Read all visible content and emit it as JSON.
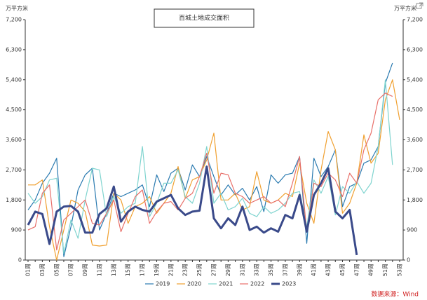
{
  "chart_data": {
    "type": "line",
    "title": "百城土地成交面积",
    "y_label": "万平方米",
    "source": "数据来源：Wind",
    "categories": [
      "01周",
      null,
      "03周",
      null,
      "05周",
      null,
      "07周",
      null,
      "09周",
      null,
      "11周",
      null,
      "13周",
      null,
      "15周",
      null,
      "17周",
      null,
      "19周",
      null,
      "21周",
      null,
      "23周",
      null,
      "25周",
      null,
      "27周",
      null,
      "29周",
      null,
      "31周",
      null,
      "33周",
      null,
      "35周",
      null,
      "37周",
      null,
      "39周",
      null,
      "41周",
      null,
      "43周",
      null,
      "45周",
      null,
      "47周",
      null,
      "49周",
      null,
      "51周",
      null,
      "53周"
    ],
    "ylim": [
      0,
      7200
    ],
    "yticks": [
      0,
      900,
      {
        "value": 1800,
        "label": "1,800"
      },
      {
        "value": 2700,
        "label": "2,700"
      },
      {
        "value": 3600,
        "label": "3,600"
      },
      {
        "value": 4500,
        "label": "4,500"
      },
      {
        "value": 5400,
        "label": "5,400"
      },
      {
        "value": 6300,
        "label": "6,300"
      },
      {
        "value": 7200,
        "label": "7,200"
      }
    ],
    "series": [
      {
        "name": "2019",
        "color": "#2a7ab0",
        "width": 1.2,
        "values": [
          1500,
          1800,
          2300,
          2600,
          3050,
          100,
          1000,
          2100,
          2550,
          2750,
          900,
          1400,
          2000,
          1900,
          2000,
          2100,
          2250,
          1600,
          2550,
          2050,
          2600,
          2750,
          2100,
          2850,
          2500,
          3100,
          2500,
          1950,
          2250,
          1950,
          2150,
          1800,
          2200,
          1450,
          2550,
          2300,
          2550,
          2600,
          3100,
          500,
          3050,
          2500,
          2800,
          3300,
          1600,
          2200,
          2300,
          2900,
          3000,
          3400,
          5300,
          5900,
          null
        ]
      },
      {
        "name": "2020",
        "color": "#f0a030",
        "width": 1.2,
        "values": [
          2250,
          2250,
          2400,
          1000,
          0,
          900,
          1800,
          1700,
          1450,
          450,
          420,
          450,
          2000,
          1800,
          1100,
          1600,
          1700,
          1900,
          1400,
          1700,
          2000,
          2800,
          1850,
          2400,
          2500,
          3000,
          3800,
          1800,
          1800,
          2000,
          1500,
          1600,
          2650,
          1800,
          1700,
          1800,
          2000,
          1900,
          2900,
          1700,
          1100,
          2700,
          3850,
          3300,
          1400,
          1700,
          2300,
          3750,
          2900,
          3200,
          4800,
          5400,
          4200
        ]
      },
      {
        "name": "2021",
        "color": "#7fd4cf",
        "width": 1.2,
        "values": [
          2000,
          1700,
          1900,
          2400,
          2450,
          200,
          1200,
          650,
          1800,
          2750,
          2700,
          1300,
          1900,
          1400,
          1600,
          1700,
          3400,
          1300,
          1700,
          2300,
          2300,
          2700,
          1900,
          1700,
          2300,
          3400,
          1700,
          2000,
          1500,
          1600,
          1850,
          1400,
          1300,
          1600,
          1400,
          1500,
          1700,
          2000,
          2050,
          1000,
          2400,
          2000,
          2500,
          1350,
          2200,
          2000,
          2350,
          2000,
          2300,
          3400,
          5400,
          2850,
          null
        ]
      },
      {
        "name": "2022",
        "color": "#e8706a",
        "width": 1.2,
        "values": [
          900,
          1000,
          2000,
          2250,
          300,
          1200,
          1400,
          1600,
          1800,
          1100,
          1050,
          1400,
          1800,
          850,
          1400,
          1900,
          2100,
          1100,
          1450,
          1700,
          1750,
          1500,
          1850,
          2000,
          2500,
          3200,
          2000,
          2600,
          2550,
          2000,
          1900,
          1700,
          1800,
          1900,
          1700,
          1800,
          1600,
          2300,
          3100,
          850,
          2300,
          2200,
          2600,
          2400,
          1900,
          2600,
          2300,
          3300,
          3800,
          4800,
          5000,
          4900,
          null
        ]
      },
      {
        "name": "2023",
        "color": "#3a4a8a",
        "width": 3,
        "values": [
          1050,
          1450,
          1380,
          480,
          1450,
          1600,
          1620,
          1450,
          820,
          820,
          1380,
          1550,
          2200,
          1150,
          1450,
          1600,
          1500,
          1450,
          1750,
          1850,
          1950,
          1550,
          1350,
          1450,
          1480,
          2800,
          1250,
          950,
          1250,
          1050,
          1600,
          900,
          1000,
          820,
          950,
          850,
          1350,
          1250,
          1950,
          850,
          1950,
          2300,
          2750,
          1450,
          1250,
          1500,
          150,
          null,
          null,
          null,
          null,
          null,
          null
        ]
      }
    ]
  }
}
